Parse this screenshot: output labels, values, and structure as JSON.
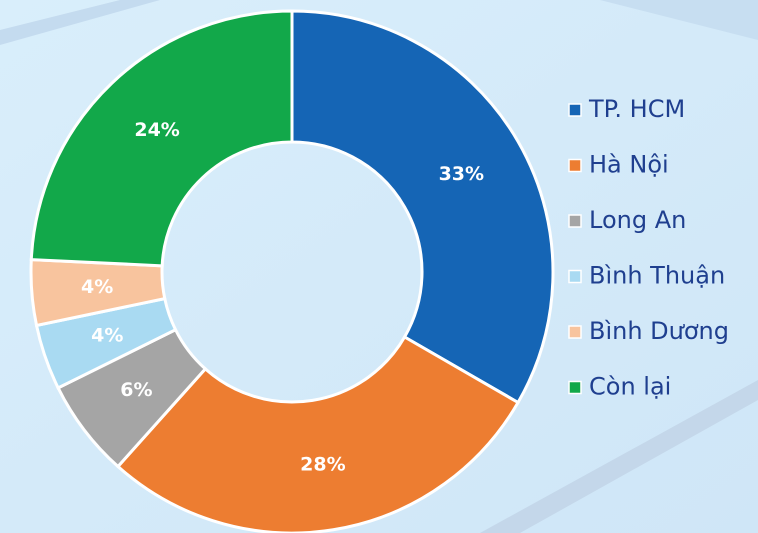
{
  "chart_data": {
    "type": "donut",
    "categories": [
      "TP. HCM",
      "Hà Nội",
      "Long An",
      "Bình Thuận",
      "Bình Dương",
      "Còn lại"
    ],
    "values": [
      33,
      28,
      6,
      4,
      4,
      24
    ],
    "value_labels": [
      "33%",
      "28%",
      "6%",
      "4%",
      "4%",
      "24%"
    ],
    "colors": [
      "#1565b5",
      "#ed7d31",
      "#a5a5a5",
      "#a9daf2",
      "#f8c49e",
      "#12a84a"
    ]
  }
}
